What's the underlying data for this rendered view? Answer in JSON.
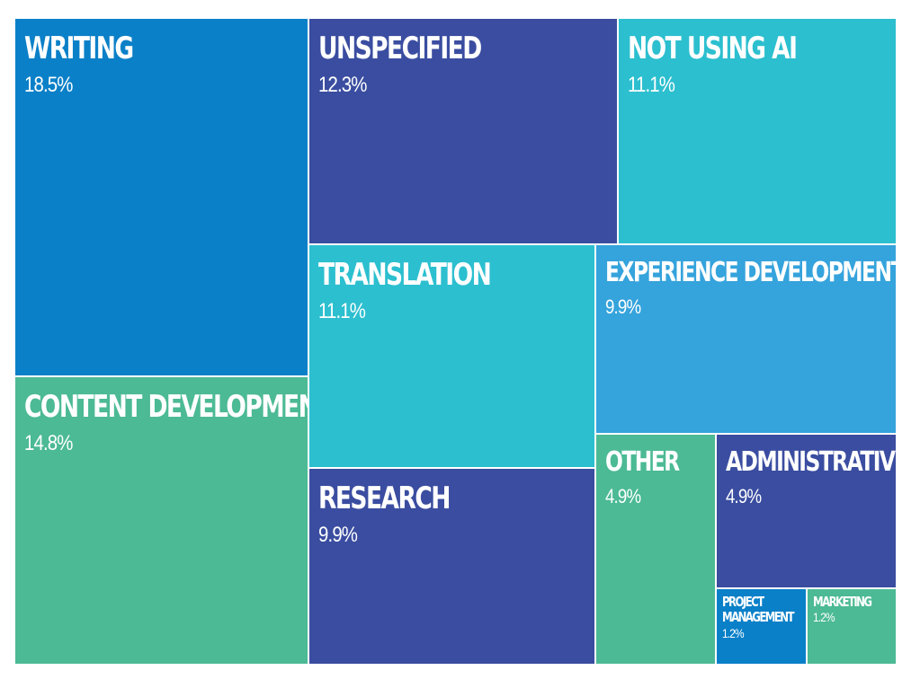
{
  "chart_data": {
    "type": "treemap",
    "colors": {
      "blue": "#0a80c8",
      "indigo": "#3a4da0",
      "cyan": "#2cbfcf",
      "green": "#4cba94",
      "sky": "#35a3dc"
    },
    "items": [
      {
        "key": "writing",
        "label": "WRITING",
        "value": 18.5,
        "display": "18.5%",
        "color": "#0a80c8"
      },
      {
        "key": "content-development",
        "label": "CONTENT DEVELOPMENT",
        "value": 14.8,
        "display": "14.8%",
        "color": "#4cba94"
      },
      {
        "key": "unspecified",
        "label": "UNSPECIFIED",
        "value": 12.3,
        "display": "12.3%",
        "color": "#3a4da0"
      },
      {
        "key": "not-using-ai",
        "label": "NOT USING AI",
        "value": 11.1,
        "display": "11.1%",
        "color": "#2cbfcf"
      },
      {
        "key": "translation",
        "label": "TRANSLATION",
        "value": 11.1,
        "display": "11.1%",
        "color": "#2cbfcf"
      },
      {
        "key": "experience-development",
        "label": "EXPERIENCE DEVELOPMENT",
        "value": 9.9,
        "display": "9.9%",
        "color": "#35a3dc"
      },
      {
        "key": "research",
        "label": "RESEARCH",
        "value": 9.9,
        "display": "9.9%",
        "color": "#3a4da0"
      },
      {
        "key": "other",
        "label": "OTHER",
        "value": 4.9,
        "display": "4.9%",
        "color": "#4cba94"
      },
      {
        "key": "administrative",
        "label": "ADMINISTRATIVE",
        "value": 4.9,
        "display": "4.9%",
        "color": "#3a4da0"
      },
      {
        "key": "project-management",
        "label": "PROJECT MANAGEMENT",
        "value": 1.2,
        "display": "1.2%",
        "color": "#0a80c8"
      },
      {
        "key": "marketing",
        "label": "MARKETING",
        "value": 1.2,
        "display": "1.2%",
        "color": "#4cba94"
      }
    ]
  }
}
